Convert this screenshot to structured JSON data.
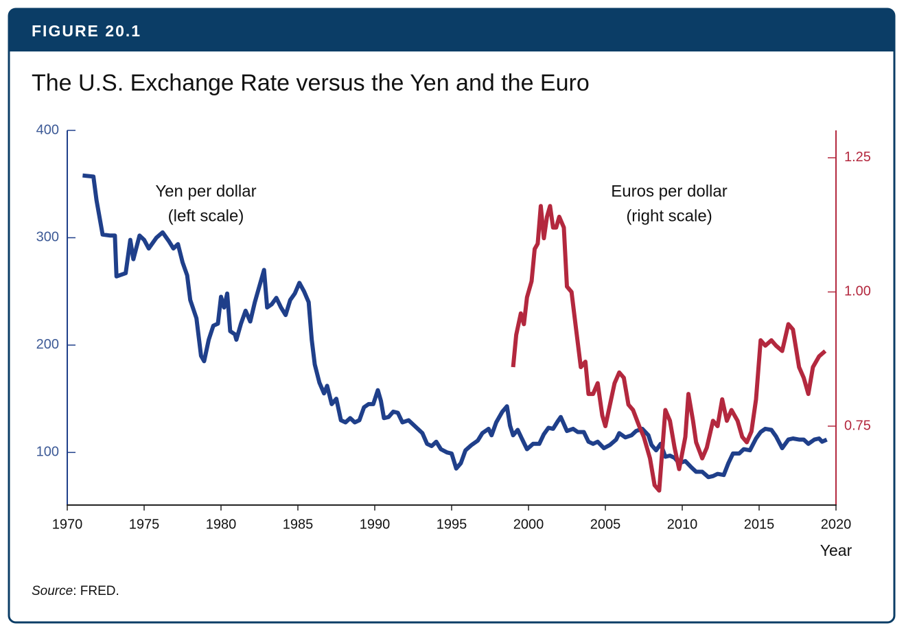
{
  "figure_label": "FIGURE 20.1",
  "chart_data": {
    "type": "line",
    "title": "The U.S. Exchange Rate versus the Yen and the Euro",
    "xlabel": "Year",
    "annotations": [
      "Yen per dollar",
      "(left scale)",
      "Euros per dollar",
      "(right scale)"
    ],
    "xlim": [
      1970,
      2020
    ],
    "xticks": [
      1970,
      1975,
      1980,
      1985,
      1990,
      1995,
      2000,
      2005,
      2010,
      2015,
      2020
    ],
    "ylim": [
      51,
      400
    ],
    "yticks": [
      100,
      200,
      300,
      400
    ],
    "y2lim": [
      0.603,
      1.301
    ],
    "y2ticks": [
      0.75,
      {
        "value": 1,
        "label": "1.00"
      },
      1.25
    ],
    "series": [
      {
        "name": "Yen per dollar",
        "color": "#1f3f8a",
        "axis": "y",
        "x": [
          1971.0,
          1971.7,
          1971.9,
          1972.3,
          1972.8,
          1973.1,
          1973.2,
          1973.8,
          1974.1,
          1974.3,
          1974.7,
          1975.0,
          1975.3,
          1975.8,
          1976.2,
          1976.6,
          1976.9,
          1977.2,
          1977.5,
          1977.8,
          1978.0,
          1978.4,
          1978.7,
          1978.9,
          1979.2,
          1979.5,
          1979.8,
          1980.0,
          1980.2,
          1980.4,
          1980.6,
          1980.9,
          1981.0,
          1981.3,
          1981.6,
          1981.9,
          1982.2,
          1982.5,
          1982.8,
          1983.0,
          1983.3,
          1983.6,
          1983.9,
          1984.2,
          1984.5,
          1984.8,
          1985.1,
          1985.4,
          1985.7,
          1985.9,
          1986.1,
          1986.4,
          1986.7,
          1986.9,
          1987.2,
          1987.5,
          1987.8,
          1988.1,
          1988.4,
          1988.7,
          1989.0,
          1989.3,
          1989.6,
          1989.9,
          1990.2,
          1990.4,
          1990.6,
          1990.9,
          1991.2,
          1991.5,
          1991.8,
          1992.2,
          1992.5,
          1992.8,
          1993.1,
          1993.4,
          1993.7,
          1994.0,
          1994.3,
          1994.7,
          1995.0,
          1995.3,
          1995.6,
          1995.9,
          1996.3,
          1996.7,
          1997.0,
          1997.4,
          1997.6,
          1997.9,
          1998.3,
          1998.6,
          1998.8,
          1999.0,
          1999.3,
          1999.6,
          1999.9,
          2000.3,
          2000.7,
          2001.0,
          2001.3,
          2001.6,
          2001.9,
          2002.1,
          2002.5,
          2002.9,
          2003.2,
          2003.6,
          2003.9,
          2004.2,
          2004.5,
          2004.9,
          2005.3,
          2005.7,
          2005.9,
          2006.3,
          2006.7,
          2007.0,
          2007.4,
          2007.8,
          2008.0,
          2008.3,
          2008.6,
          2008.9,
          2009.2,
          2009.5,
          2009.8,
          2010.2,
          2010.6,
          2010.9,
          2011.3,
          2011.7,
          2012.0,
          2012.3,
          2012.7,
          2013.0,
          2013.3,
          2013.7,
          2014.0,
          2014.4,
          2014.8,
          2015.1,
          2015.4,
          2015.8,
          2016.1,
          2016.5,
          2016.9,
          2017.2,
          2017.6,
          2017.9,
          2018.2,
          2018.6,
          2018.9,
          2019.1,
          2019.4
        ],
        "values": [
          358,
          357,
          335,
          303,
          302,
          302,
          264,
          267,
          298,
          280,
          302,
          298,
          290,
          300,
          305,
          297,
          290,
          294,
          277,
          265,
          242,
          225,
          190,
          185,
          205,
          218,
          220,
          245,
          235,
          248,
          213,
          210,
          205,
          220,
          232,
          222,
          240,
          255,
          270,
          235,
          238,
          244,
          235,
          228,
          242,
          248,
          258,
          250,
          240,
          205,
          182,
          165,
          155,
          162,
          145,
          150,
          130,
          128,
          132,
          128,
          130,
          142,
          145,
          145,
          158,
          148,
          132,
          133,
          138,
          137,
          128,
          130,
          126,
          122,
          118,
          108,
          106,
          110,
          103,
          100,
          99,
          85,
          90,
          102,
          107,
          111,
          118,
          122,
          116,
          128,
          138,
          143,
          125,
          116,
          121,
          112,
          103,
          108,
          108,
          117,
          123,
          122,
          129,
          133,
          120,
          122,
          119,
          119,
          110,
          108,
          110,
          104,
          107,
          112,
          118,
          114,
          116,
          120,
          122,
          116,
          107,
          102,
          108,
          96,
          97,
          95,
          90,
          92,
          86,
          82,
          82,
          77,
          78,
          80,
          79,
          90,
          99,
          99,
          103,
          102,
          113,
          119,
          122,
          121,
          115,
          104,
          112,
          113,
          112,
          112,
          108,
          112,
          113,
          110,
          112
        ]
      },
      {
        "name": "Euros per dollar",
        "color": "#b3283e",
        "axis": "y2",
        "x": [
          1999.0,
          1999.2,
          1999.5,
          1999.7,
          1999.9,
          2000.2,
          2000.4,
          2000.6,
          2000.8,
          2001.0,
          2001.2,
          2001.4,
          2001.6,
          2001.8,
          2002.0,
          2002.3,
          2002.5,
          2002.8,
          2003.1,
          2003.4,
          2003.7,
          2003.9,
          2004.2,
          2004.5,
          2004.8,
          2005.0,
          2005.3,
          2005.6,
          2005.9,
          2006.2,
          2006.5,
          2006.8,
          2007.2,
          2007.5,
          2007.9,
          2008.2,
          2008.5,
          2008.9,
          2009.2,
          2009.5,
          2009.8,
          2010.2,
          2010.4,
          2010.7,
          2010.9,
          2011.3,
          2011.6,
          2012.0,
          2012.3,
          2012.6,
          2012.9,
          2013.2,
          2013.6,
          2013.9,
          2014.2,
          2014.5,
          2014.8,
          2015.1,
          2015.4,
          2015.8,
          2016.1,
          2016.5,
          2016.9,
          2017.2,
          2017.6,
          2017.9,
          2018.2,
          2018.5,
          2018.9,
          2019.3
        ],
        "values": [
          0.86,
          0.92,
          0.96,
          0.94,
          0.99,
          1.02,
          1.08,
          1.09,
          1.16,
          1.1,
          1.14,
          1.16,
          1.12,
          1.12,
          1.14,
          1.12,
          1.01,
          1.0,
          0.93,
          0.86,
          0.87,
          0.81,
          0.81,
          0.83,
          0.77,
          0.75,
          0.79,
          0.83,
          0.85,
          0.84,
          0.79,
          0.78,
          0.75,
          0.73,
          0.69,
          0.64,
          0.63,
          0.78,
          0.76,
          0.71,
          0.67,
          0.73,
          0.81,
          0.76,
          0.72,
          0.69,
          0.71,
          0.76,
          0.75,
          0.8,
          0.76,
          0.78,
          0.76,
          0.73,
          0.72,
          0.74,
          0.8,
          0.91,
          0.9,
          0.91,
          0.9,
          0.89,
          0.94,
          0.93,
          0.86,
          0.84,
          0.81,
          0.86,
          0.88,
          0.89
        ]
      }
    ]
  },
  "source": {
    "label": "Source",
    "text": ": FRED."
  }
}
